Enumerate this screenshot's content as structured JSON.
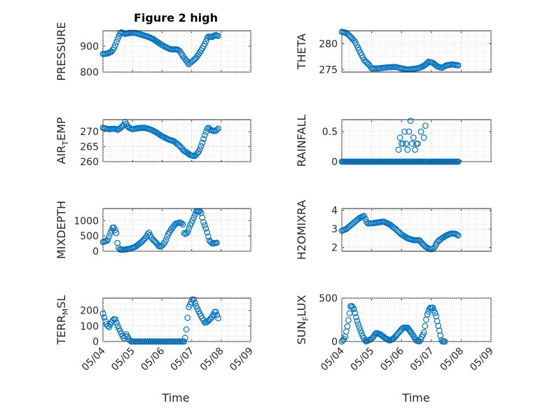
{
  "figure": {
    "title": "Figure 2 high",
    "xlabel": "Time"
  },
  "chart_data": [
    {
      "type": "scatter",
      "panel": "PRESSURE",
      "ylabel": "PRESSURE",
      "ylim": [
        800,
        960
      ],
      "yticks": [
        800,
        900
      ],
      "xlim": [
        0,
        5
      ],
      "xticks": [
        "05/04",
        "05/05",
        "05/06",
        "05/07",
        "05/08",
        "05/09"
      ],
      "grid": true,
      "knots": [
        [
          0,
          870
        ],
        [
          0.15,
          872
        ],
        [
          0.3,
          880
        ],
        [
          0.4,
          900
        ],
        [
          0.5,
          930
        ],
        [
          0.6,
          955
        ],
        [
          0.75,
          948
        ],
        [
          0.9,
          952
        ],
        [
          1.1,
          952
        ],
        [
          1.3,
          945
        ],
        [
          1.5,
          938
        ],
        [
          1.7,
          928
        ],
        [
          1.9,
          912
        ],
        [
          2.1,
          898
        ],
        [
          2.3,
          888
        ],
        [
          2.5,
          888
        ],
        [
          2.6,
          882
        ],
        [
          2.7,
          862
        ],
        [
          2.8,
          848
        ],
        [
          2.9,
          830
        ],
        [
          3.0,
          840
        ],
        [
          3.15,
          855
        ],
        [
          3.3,
          880
        ],
        [
          3.45,
          910
        ],
        [
          3.55,
          938
        ],
        [
          3.7,
          936
        ],
        [
          3.8,
          944
        ],
        [
          3.9,
          940
        ]
      ]
    },
    {
      "type": "scatter",
      "panel": "THETA",
      "ylabel": "THETA",
      "ylim": [
        274.5,
        282.5
      ],
      "yticks": [
        275,
        280
      ],
      "xlim": [
        0,
        5
      ],
      "xticks": [
        "05/04",
        "05/05",
        "05/06",
        "05/07",
        "05/08",
        "05/09"
      ],
      "grid": true,
      "knots": [
        [
          0,
          282.3
        ],
        [
          0.15,
          282.1
        ],
        [
          0.3,
          281.3
        ],
        [
          0.45,
          280.3
        ],
        [
          0.6,
          278.5
        ],
        [
          0.75,
          276.8
        ],
        [
          0.9,
          276.0
        ],
        [
          1.0,
          275.2
        ],
        [
          1.2,
          275.2
        ],
        [
          1.5,
          275.4
        ],
        [
          1.8,
          275.5
        ],
        [
          2.0,
          275.2
        ],
        [
          2.2,
          275.0
        ],
        [
          2.4,
          275.1
        ],
        [
          2.6,
          275.3
        ],
        [
          2.8,
          275.9
        ],
        [
          2.9,
          276.5
        ],
        [
          3.05,
          276.3
        ],
        [
          3.2,
          275.6
        ],
        [
          3.35,
          275.3
        ],
        [
          3.5,
          275.8
        ],
        [
          3.7,
          276.0
        ],
        [
          3.9,
          275.8
        ]
      ]
    },
    {
      "type": "scatter",
      "panel": "AIR_TEMP",
      "ylabel": "AIR_TEMP",
      "ylim": [
        260,
        274
      ],
      "yticks": [
        260,
        265,
        270
      ],
      "xlim": [
        0,
        5
      ],
      "xticks": [
        "05/04",
        "05/05",
        "05/06",
        "05/07",
        "05/08",
        "05/09"
      ],
      "grid": true,
      "knots": [
        [
          0,
          271.3
        ],
        [
          0.2,
          270.8
        ],
        [
          0.4,
          271.0
        ],
        [
          0.5,
          270.6
        ],
        [
          0.6,
          271.3
        ],
        [
          0.7,
          272.2
        ],
        [
          0.75,
          273.3
        ],
        [
          0.85,
          271.5
        ],
        [
          1.0,
          270.8
        ],
        [
          1.2,
          271.2
        ],
        [
          1.4,
          271.3
        ],
        [
          1.6,
          270.8
        ],
        [
          1.8,
          269.8
        ],
        [
          2.0,
          268.5
        ],
        [
          2.2,
          267.5
        ],
        [
          2.4,
          266.8
        ],
        [
          2.6,
          265.2
        ],
        [
          2.75,
          263.5
        ],
        [
          2.85,
          263.0
        ],
        [
          2.95,
          262.2
        ],
        [
          3.1,
          261.8
        ],
        [
          3.25,
          263.5
        ],
        [
          3.35,
          266.0
        ],
        [
          3.45,
          269.0
        ],
        [
          3.55,
          271.5
        ],
        [
          3.65,
          270.5
        ],
        [
          3.8,
          270.2
        ],
        [
          3.9,
          271.0
        ]
      ]
    },
    {
      "type": "scatter",
      "panel": "RAINFALL",
      "ylabel": "RAINFALL",
      "ylim": [
        0,
        0.7
      ],
      "yticks": [
        0,
        0.5
      ],
      "xlim": [
        0,
        5
      ],
      "xticks": [
        "05/04",
        "05/05",
        "05/06",
        "05/07",
        "05/08",
        "05/09"
      ],
      "grid": true,
      "pattern": "zero-with-burst",
      "n": 120,
      "burst": [
        [
          1.9,
          0.2
        ],
        [
          1.95,
          0.4
        ],
        [
          2.0,
          0.3
        ],
        [
          2.05,
          0.3
        ],
        [
          2.1,
          0.5
        ],
        [
          2.15,
          0.3
        ],
        [
          2.2,
          0.2
        ],
        [
          2.25,
          0.5
        ],
        [
          2.3,
          0.68
        ],
        [
          2.35,
          0.3
        ],
        [
          2.4,
          0.4
        ],
        [
          2.45,
          0.2
        ],
        [
          2.5,
          0.3
        ],
        [
          2.55,
          0.3
        ],
        [
          2.65,
          0.5
        ],
        [
          2.75,
          0.4
        ],
        [
          2.8,
          0.6
        ]
      ]
    },
    {
      "type": "scatter",
      "panel": "MIXDEPTH",
      "ylabel": "MIXDEPTH",
      "ylim": [
        0,
        1400
      ],
      "yticks": [
        0,
        500,
        1000
      ],
      "xlim": [
        0,
        5
      ],
      "xticks": [
        "05/04",
        "05/05",
        "05/06",
        "05/07",
        "05/08",
        "05/09"
      ],
      "grid": true,
      "knots": [
        [
          0,
          300
        ],
        [
          0.15,
          350
        ],
        [
          0.25,
          600
        ],
        [
          0.35,
          820
        ],
        [
          0.45,
          600
        ],
        [
          0.5,
          200
        ],
        [
          0.55,
          60
        ],
        [
          0.7,
          50
        ],
        [
          0.9,
          80
        ],
        [
          1.1,
          150
        ],
        [
          1.3,
          300
        ],
        [
          1.45,
          450
        ],
        [
          1.55,
          620
        ],
        [
          1.65,
          420
        ],
        [
          1.8,
          280
        ],
        [
          1.9,
          150
        ],
        [
          2.0,
          180
        ],
        [
          2.1,
          300
        ],
        [
          2.2,
          550
        ],
        [
          2.3,
          700
        ],
        [
          2.45,
          900
        ],
        [
          2.6,
          950
        ],
        [
          2.7,
          900
        ],
        [
          2.75,
          550
        ],
        [
          2.85,
          600
        ],
        [
          2.95,
          850
        ],
        [
          3.05,
          1050
        ],
        [
          3.15,
          1300
        ],
        [
          3.3,
          1320
        ],
        [
          3.4,
          950
        ],
        [
          3.5,
          700
        ],
        [
          3.6,
          350
        ],
        [
          3.7,
          250
        ],
        [
          3.85,
          280
        ]
      ]
    },
    {
      "type": "scatter",
      "panel": "H2OMIXRA",
      "ylabel": "H2OMIXRA",
      "ylim": [
        1.8,
        4.1
      ],
      "yticks": [
        2,
        3,
        4
      ],
      "xlim": [
        0,
        5
      ],
      "xticks": [
        "05/04",
        "05/05",
        "05/06",
        "05/07",
        "05/08",
        "05/09"
      ],
      "grid": true,
      "knots": [
        [
          0,
          2.9
        ],
        [
          0.15,
          3.0
        ],
        [
          0.3,
          3.2
        ],
        [
          0.45,
          3.4
        ],
        [
          0.6,
          3.6
        ],
        [
          0.75,
          3.7
        ],
        [
          0.85,
          3.3
        ],
        [
          1.0,
          3.3
        ],
        [
          1.2,
          3.35
        ],
        [
          1.4,
          3.4
        ],
        [
          1.6,
          3.25
        ],
        [
          1.8,
          3.0
        ],
        [
          2.0,
          2.7
        ],
        [
          2.2,
          2.5
        ],
        [
          2.4,
          2.4
        ],
        [
          2.6,
          2.4
        ],
        [
          2.7,
          2.2
        ],
        [
          2.8,
          2.05
        ],
        [
          2.9,
          1.95
        ],
        [
          3.0,
          1.9
        ],
        [
          3.1,
          2.0
        ],
        [
          3.2,
          2.3
        ],
        [
          3.35,
          2.5
        ],
        [
          3.5,
          2.65
        ],
        [
          3.65,
          2.75
        ],
        [
          3.8,
          2.75
        ],
        [
          3.9,
          2.65
        ]
      ]
    },
    {
      "type": "scatter",
      "panel": "TERR_MSL",
      "ylabel": "TERR_MSL",
      "ylim": [
        0,
        280
      ],
      "yticks": [
        0,
        100,
        200
      ],
      "xlim": [
        0,
        5
      ],
      "xticks": [
        "05/04",
        "05/05",
        "05/06",
        "05/07",
        "05/08",
        "05/09"
      ],
      "grid": true,
      "knots": [
        [
          0,
          180
        ],
        [
          0.1,
          120
        ],
        [
          0.2,
          90
        ],
        [
          0.3,
          130
        ],
        [
          0.4,
          150
        ],
        [
          0.5,
          100
        ],
        [
          0.6,
          60
        ],
        [
          0.7,
          20
        ],
        [
          0.8,
          50
        ],
        [
          0.85,
          20
        ],
        [
          0.95,
          0
        ],
        [
          1.5,
          0
        ],
        [
          2.0,
          0
        ],
        [
          2.5,
          0
        ],
        [
          2.75,
          0
        ],
        [
          2.8,
          40
        ],
        [
          2.9,
          220
        ],
        [
          3.0,
          260
        ],
        [
          3.05,
          280
        ],
        [
          3.15,
          230
        ],
        [
          3.3,
          170
        ],
        [
          3.45,
          120
        ],
        [
          3.55,
          130
        ],
        [
          3.7,
          160
        ],
        [
          3.8,
          200
        ],
        [
          3.9,
          150
        ]
      ]
    },
    {
      "type": "scatter",
      "panel": "SUN_FLUX",
      "ylabel": "SUN_FLUX",
      "ylim": [
        0,
        500
      ],
      "yticks": [
        0,
        500
      ],
      "xlim": [
        0,
        5
      ],
      "xticks": [
        "05/04",
        "05/05",
        "05/06",
        "05/07",
        "05/08",
        "05/09"
      ],
      "grid": true,
      "knots": [
        [
          0,
          0
        ],
        [
          0.1,
          40
        ],
        [
          0.2,
          200
        ],
        [
          0.3,
          420
        ],
        [
          0.4,
          380
        ],
        [
          0.5,
          250
        ],
        [
          0.6,
          150
        ],
        [
          0.7,
          60
        ],
        [
          0.8,
          0
        ],
        [
          1.0,
          30
        ],
        [
          1.15,
          100
        ],
        [
          1.3,
          80
        ],
        [
          1.45,
          40
        ],
        [
          1.6,
          10
        ],
        [
          1.75,
          40
        ],
        [
          1.9,
          100
        ],
        [
          2.05,
          160
        ],
        [
          2.2,
          160
        ],
        [
          2.35,
          90
        ],
        [
          2.5,
          10
        ],
        [
          2.6,
          0
        ],
        [
          2.75,
          100
        ],
        [
          2.85,
          300
        ],
        [
          2.95,
          390
        ],
        [
          3.05,
          390
        ],
        [
          3.15,
          300
        ],
        [
          3.25,
          150
        ],
        [
          3.35,
          0
        ],
        [
          3.45,
          0
        ]
      ]
    }
  ],
  "colors": {
    "marker": "#0072BD",
    "axis": "#262626",
    "grid": "#d7d7d7"
  }
}
